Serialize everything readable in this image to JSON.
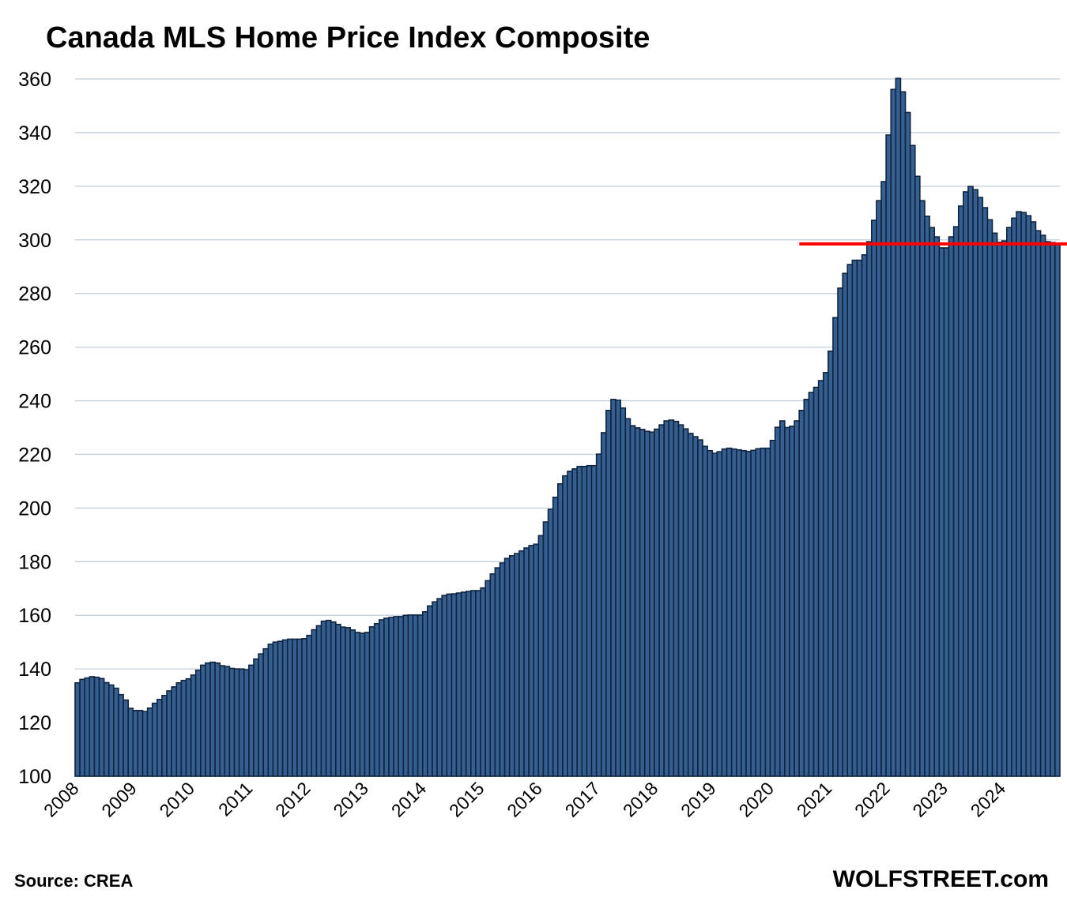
{
  "chart_data": {
    "type": "bar",
    "title": "Canada MLS Home Price Index Composite",
    "xlabel": "",
    "ylabel": "",
    "ylim": [
      100,
      360
    ],
    "yticks": [
      100,
      120,
      140,
      160,
      180,
      200,
      220,
      240,
      260,
      280,
      300,
      320,
      340,
      360
    ],
    "xtick_labels": [
      "2008",
      "2009",
      "2010",
      "2011",
      "2012",
      "2013",
      "2014",
      "2015",
      "2016",
      "2017",
      "2018",
      "2019",
      "2020",
      "2021",
      "2022",
      "2023",
      "2024"
    ],
    "x_start": "2008-01",
    "x_end": "2024-12",
    "frequency": "monthly",
    "grid": "horizontal",
    "colors": {
      "bar_fill": "#365F91",
      "bar_edge": "#0F243E",
      "grid": "#C3CEDB",
      "reference_line": "#FF0000"
    },
    "reference_line": {
      "value": 298.5,
      "from": "2020-08",
      "to": "2024-12"
    },
    "values": [
      134.8,
      136.1,
      136.6,
      137.1,
      136.9,
      136.4,
      134.9,
      134.0,
      132.8,
      130.4,
      128.4,
      125.3,
      124.5,
      124.5,
      124.1,
      125.4,
      127.2,
      128.6,
      130.1,
      131.8,
      133.3,
      134.8,
      135.7,
      136.3,
      137.7,
      139.5,
      141.4,
      142.2,
      142.5,
      142.2,
      141.2,
      140.9,
      140.2,
      140.0,
      140.0,
      139.7,
      141.4,
      143.7,
      145.6,
      147.5,
      149.2,
      150.0,
      150.3,
      150.8,
      151.1,
      151.1,
      151.1,
      151.3,
      152.5,
      154.6,
      156.1,
      157.8,
      158.1,
      157.5,
      156.6,
      155.6,
      155.4,
      154.5,
      153.6,
      153.3,
      153.6,
      155.7,
      156.9,
      158.3,
      158.9,
      159.2,
      159.5,
      159.5,
      160.0,
      160.1,
      160.1,
      160.1,
      161.3,
      163.5,
      165.0,
      166.2,
      167.4,
      167.9,
      168.0,
      168.3,
      168.6,
      168.9,
      169.2,
      169.2,
      170.2,
      172.9,
      175.4,
      177.7,
      179.5,
      181.2,
      182.2,
      183.0,
      184.0,
      185.1,
      186.0,
      186.5,
      189.7,
      194.8,
      199.5,
      204.0,
      209.0,
      212.0,
      213.7,
      214.6,
      215.5,
      215.5,
      215.8,
      215.8,
      220.1,
      228.1,
      236.4,
      240.5,
      240.2,
      237.3,
      233.3,
      230.7,
      229.9,
      229.3,
      228.6,
      228.3,
      229.4,
      231.0,
      232.5,
      232.8,
      232.3,
      231.0,
      229.5,
      227.8,
      226.6,
      225.4,
      223.0,
      221.4,
      220.4,
      221.0,
      222.0,
      222.3,
      222.0,
      221.7,
      221.4,
      221.1,
      221.5,
      222.1,
      222.3,
      222.3,
      225.2,
      230.1,
      232.5,
      230.0,
      230.5,
      232.5,
      236.4,
      240.5,
      243.1,
      245.0,
      247.5,
      250.5,
      258.5,
      271.0,
      282.0,
      287.5,
      290.8,
      292.4,
      292.4,
      294.4,
      299.3,
      307.3,
      314.6,
      321.7,
      339.1,
      356.1,
      360.2,
      355.2,
      347.5,
      335.2,
      323.7,
      314.6,
      308.8,
      304.6,
      301.1,
      297.0,
      297.0,
      301.1,
      304.9,
      312.6,
      317.9,
      319.9,
      318.7,
      315.8,
      312.0,
      307.5,
      302.5,
      299.1,
      299.6,
      304.6,
      308.1,
      310.5,
      310.2,
      309.0,
      306.7,
      303.4,
      301.7,
      299.3,
      299.0,
      298.7
    ]
  },
  "footer": {
    "source": "Source: CREA",
    "brand": "WOLFSTREET.com"
  }
}
